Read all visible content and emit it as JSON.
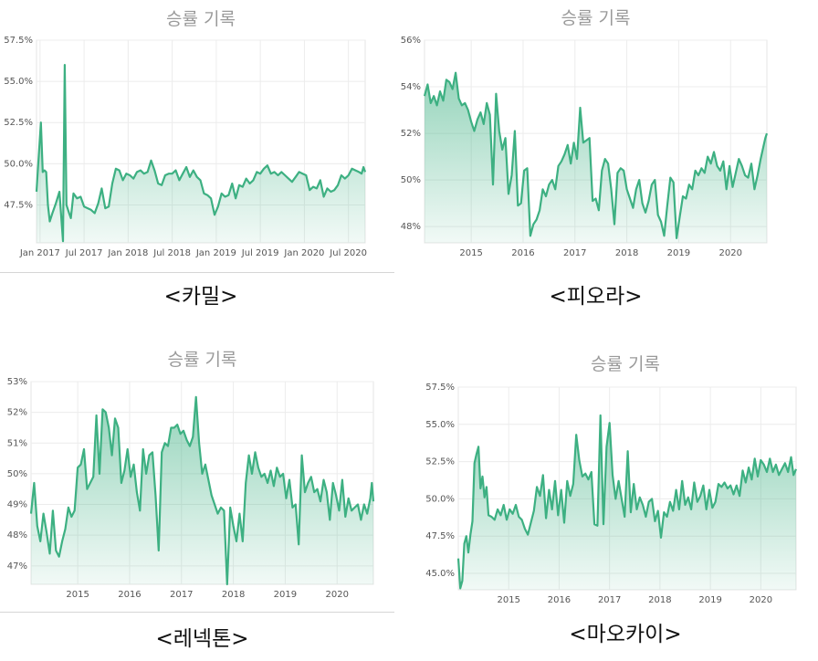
{
  "chart_data": [
    {
      "type": "area",
      "title": "승률 기록",
      "caption": "<카밀>",
      "x_tick_labels": [
        "Jan 2017",
        "Jul 2017",
        "Jan 2018",
        "Jul 2018",
        "Jan 2019",
        "Jul 2019",
        "Jan 2020",
        "Jul 2020"
      ],
      "x_tick_pos": [
        2017.0,
        2017.5,
        2018.0,
        2018.5,
        2019.0,
        2019.5,
        2020.0,
        2020.5
      ],
      "xlim": [
        2016.96,
        2020.69
      ],
      "y_tick_labels": [
        "47.5%",
        "50.0%",
        "52.5%",
        "55.0%",
        "57.5%"
      ],
      "y_tick_values": [
        47.5,
        50.0,
        52.5,
        55.0,
        57.5
      ],
      "ylim": [
        45.2,
        57.5
      ],
      "grid": true,
      "color": "#3db082",
      "x": [
        2016.96,
        2016.98,
        2017.01,
        2017.03,
        2017.05,
        2017.07,
        2017.09,
        2017.11,
        2017.14,
        2017.18,
        2017.22,
        2017.26,
        2017.28,
        2017.3,
        2017.33,
        2017.35,
        2017.38,
        2017.42,
        2017.46,
        2017.5,
        2017.54,
        2017.58,
        2017.62,
        2017.66,
        2017.7,
        2017.74,
        2017.78,
        2017.82,
        2017.86,
        2017.9,
        2017.94,
        2017.98,
        2018.02,
        2018.06,
        2018.1,
        2018.14,
        2018.18,
        2018.22,
        2018.26,
        2018.3,
        2018.34,
        2018.38,
        2018.42,
        2018.46,
        2018.5,
        2018.54,
        2018.58,
        2018.62,
        2018.66,
        2018.7,
        2018.74,
        2018.78,
        2018.82,
        2018.86,
        2018.9,
        2018.94,
        2018.98,
        2019.02,
        2019.06,
        2019.1,
        2019.14,
        2019.18,
        2019.22,
        2019.26,
        2019.3,
        2019.34,
        2019.38,
        2019.42,
        2019.46,
        2019.5,
        2019.54,
        2019.58,
        2019.62,
        2019.66,
        2019.7,
        2019.74,
        2019.78,
        2019.82,
        2019.86,
        2019.9,
        2019.94,
        2019.98,
        2020.02,
        2020.06,
        2020.1,
        2020.14,
        2020.18,
        2020.22,
        2020.26,
        2020.3,
        2020.34,
        2020.38,
        2020.42,
        2020.46,
        2020.5,
        2020.54,
        2020.58,
        2020.62,
        2020.65,
        2020.67,
        2020.69
      ],
      "y": [
        48.3,
        50.0,
        52.5,
        49.5,
        49.6,
        49.5,
        47.5,
        46.5,
        47.0,
        47.6,
        48.3,
        45.3,
        56.0,
        47.5,
        47.0,
        46.7,
        48.2,
        47.9,
        48.0,
        47.4,
        47.3,
        47.2,
        47.0,
        47.6,
        48.5,
        47.3,
        47.4,
        48.8,
        49.7,
        49.6,
        49.0,
        49.4,
        49.3,
        49.1,
        49.5,
        49.6,
        49.4,
        49.5,
        50.2,
        49.6,
        48.8,
        48.7,
        49.3,
        49.4,
        49.4,
        49.6,
        49.0,
        49.4,
        49.8,
        49.2,
        49.6,
        49.2,
        49.0,
        48.2,
        48.1,
        47.9,
        46.9,
        47.4,
        48.2,
        48.0,
        48.1,
        48.8,
        47.9,
        48.7,
        48.6,
        49.1,
        48.8,
        49.0,
        49.5,
        49.4,
        49.7,
        49.9,
        49.4,
        49.5,
        49.3,
        49.5,
        49.3,
        49.1,
        48.9,
        49.2,
        49.5,
        49.4,
        49.3,
        48.4,
        48.6,
        48.5,
        49.0,
        48.0,
        48.5,
        48.3,
        48.4,
        48.7,
        49.3,
        49.1,
        49.3,
        49.7,
        49.6,
        49.5,
        49.4,
        49.8,
        49.5
      ]
    },
    {
      "type": "area",
      "title": "승률 기록",
      "caption": "<피오라>",
      "x_tick_labels": [
        "2015",
        "2016",
        "2017",
        "2018",
        "2019",
        "2020"
      ],
      "x_tick_pos": [
        2015.0,
        2016.0,
        2017.0,
        2018.0,
        2019.0,
        2020.0
      ],
      "xlim": [
        2014.1,
        2020.7
      ],
      "y_tick_labels": [
        "48%",
        "50%",
        "52%",
        "54%",
        "56%"
      ],
      "y_tick_values": [
        48,
        50,
        52,
        54,
        56
      ],
      "ylim": [
        47.3,
        56.0
      ],
      "grid": true,
      "color": "#3db082",
      "x": [
        2014.1,
        2014.16,
        2014.22,
        2014.28,
        2014.34,
        2014.4,
        2014.46,
        2014.52,
        2014.58,
        2014.64,
        2014.7,
        2014.76,
        2014.82,
        2014.88,
        2014.94,
        2015.0,
        2015.06,
        2015.12,
        2015.18,
        2015.24,
        2015.3,
        2015.36,
        2015.42,
        2015.48,
        2015.54,
        2015.6,
        2015.66,
        2015.72,
        2015.78,
        2015.84,
        2015.9,
        2015.96,
        2016.02,
        2016.08,
        2016.14,
        2016.2,
        2016.26,
        2016.32,
        2016.38,
        2016.44,
        2016.5,
        2016.56,
        2016.62,
        2016.68,
        2016.74,
        2016.8,
        2016.86,
        2016.92,
        2016.98,
        2017.04,
        2017.1,
        2017.16,
        2017.22,
        2017.28,
        2017.34,
        2017.4,
        2017.46,
        2017.52,
        2017.58,
        2017.64,
        2017.7,
        2017.76,
        2017.82,
        2017.88,
        2017.94,
        2018.0,
        2018.06,
        2018.12,
        2018.18,
        2018.24,
        2018.3,
        2018.36,
        2018.42,
        2018.48,
        2018.54,
        2018.6,
        2018.66,
        2018.72,
        2018.78,
        2018.84,
        2018.9,
        2018.96,
        2019.02,
        2019.08,
        2019.14,
        2019.2,
        2019.26,
        2019.32,
        2019.38,
        2019.44,
        2019.5,
        2019.56,
        2019.62,
        2019.68,
        2019.74,
        2019.8,
        2019.86,
        2019.92,
        2019.98,
        2020.04,
        2020.1,
        2020.16,
        2020.22,
        2020.28,
        2020.34,
        2020.4,
        2020.46,
        2020.52,
        2020.58,
        2020.64,
        2020.67,
        2020.7
      ],
      "y": [
        53.6,
        54.1,
        53.3,
        53.6,
        53.2,
        53.8,
        53.4,
        54.3,
        54.2,
        53.9,
        54.6,
        53.5,
        53.2,
        53.3,
        53.0,
        52.5,
        52.1,
        52.6,
        52.9,
        52.4,
        53.3,
        52.8,
        49.8,
        53.7,
        52.1,
        51.3,
        51.8,
        49.4,
        50.2,
        52.1,
        48.9,
        49.0,
        50.4,
        50.5,
        47.6,
        48.1,
        48.3,
        48.7,
        49.6,
        49.3,
        49.8,
        50.0,
        49.6,
        50.6,
        50.8,
        51.1,
        51.5,
        50.7,
        51.6,
        50.9,
        53.1,
        51.6,
        51.7,
        51.8,
        49.1,
        49.2,
        48.7,
        50.4,
        50.9,
        50.7,
        49.6,
        48.1,
        50.3,
        50.5,
        50.4,
        49.6,
        49.2,
        48.8,
        49.6,
        50.0,
        49.0,
        48.6,
        49.1,
        49.8,
        50.0,
        48.5,
        48.2,
        47.6,
        48.9,
        50.1,
        49.9,
        47.5,
        48.4,
        49.3,
        49.2,
        49.8,
        49.6,
        50.4,
        50.2,
        50.5,
        50.3,
        51.0,
        50.7,
        51.2,
        50.6,
        50.4,
        50.8,
        49.6,
        50.6,
        49.7,
        50.3,
        50.9,
        50.6,
        50.2,
        50.1,
        50.7,
        49.6,
        50.2,
        50.9,
        51.5,
        51.8,
        52.0
      ]
    },
    {
      "type": "area",
      "title": "승률 기록",
      "caption": "<레넥톤>",
      "x_tick_labels": [
        "2015",
        "2016",
        "2017",
        "2018",
        "2019",
        "2020"
      ],
      "x_tick_pos": [
        2015.0,
        2016.0,
        2017.0,
        2018.0,
        2019.0,
        2020.0
      ],
      "xlim": [
        2014.1,
        2020.7
      ],
      "y_tick_labels": [
        "47%",
        "48%",
        "49%",
        "50%",
        "51%",
        "52%",
        "53%"
      ],
      "y_tick_values": [
        47,
        48,
        49,
        50,
        51,
        52,
        53
      ],
      "ylim": [
        46.4,
        53.0
      ],
      "grid": true,
      "color": "#3db082",
      "x": [
        2014.1,
        2014.16,
        2014.22,
        2014.28,
        2014.34,
        2014.4,
        2014.46,
        2014.52,
        2014.58,
        2014.64,
        2014.7,
        2014.76,
        2014.82,
        2014.88,
        2014.94,
        2015.0,
        2015.06,
        2015.12,
        2015.18,
        2015.24,
        2015.3,
        2015.36,
        2015.42,
        2015.48,
        2015.54,
        2015.6,
        2015.66,
        2015.72,
        2015.78,
        2015.84,
        2015.9,
        2015.96,
        2016.02,
        2016.08,
        2016.14,
        2016.2,
        2016.26,
        2016.32,
        2016.38,
        2016.44,
        2016.5,
        2016.56,
        2016.62,
        2016.68,
        2016.74,
        2016.8,
        2016.86,
        2016.92,
        2016.98,
        2017.04,
        2017.1,
        2017.16,
        2017.22,
        2017.28,
        2017.34,
        2017.4,
        2017.46,
        2017.52,
        2017.58,
        2017.64,
        2017.7,
        2017.76,
        2017.82,
        2017.88,
        2017.94,
        2018.0,
        2018.06,
        2018.12,
        2018.18,
        2018.24,
        2018.3,
        2018.36,
        2018.42,
        2018.48,
        2018.54,
        2018.6,
        2018.66,
        2018.72,
        2018.78,
        2018.84,
        2018.9,
        2018.96,
        2019.02,
        2019.08,
        2019.14,
        2019.2,
        2019.26,
        2019.32,
        2019.38,
        2019.44,
        2019.5,
        2019.56,
        2019.62,
        2019.68,
        2019.74,
        2019.8,
        2019.86,
        2019.92,
        2019.98,
        2020.04,
        2020.1,
        2020.16,
        2020.22,
        2020.28,
        2020.34,
        2020.4,
        2020.46,
        2020.52,
        2020.58,
        2020.64,
        2020.67,
        2020.7
      ],
      "y": [
        48.7,
        49.7,
        48.3,
        47.8,
        48.7,
        48.1,
        47.4,
        48.8,
        47.5,
        47.3,
        47.8,
        48.2,
        48.9,
        48.6,
        48.8,
        50.2,
        50.3,
        50.8,
        49.5,
        49.7,
        49.9,
        51.9,
        50.0,
        52.1,
        52.0,
        51.5,
        50.6,
        51.8,
        51.5,
        49.7,
        50.1,
        50.8,
        49.9,
        50.3,
        49.4,
        48.8,
        50.8,
        50.0,
        50.6,
        50.7,
        49.3,
        47.5,
        50.7,
        51.0,
        50.9,
        51.5,
        51.5,
        51.6,
        51.3,
        51.4,
        51.1,
        50.9,
        51.2,
        52.5,
        51.0,
        50.0,
        50.3,
        49.8,
        49.3,
        49.0,
        48.7,
        48.9,
        48.8,
        46.4,
        48.9,
        48.3,
        47.8,
        48.7,
        47.8,
        49.7,
        50.6,
        50.0,
        50.7,
        50.2,
        49.9,
        50.0,
        49.7,
        50.1,
        49.6,
        50.2,
        49.9,
        50.0,
        49.2,
        49.8,
        48.9,
        49.0,
        47.7,
        50.6,
        49.4,
        49.7,
        49.9,
        49.4,
        49.5,
        49.1,
        49.8,
        49.4,
        48.5,
        49.7,
        49.3,
        48.8,
        49.8,
        48.6,
        49.2,
        48.8,
        48.9,
        49.0,
        48.5,
        49.0,
        48.7,
        49.2,
        49.7,
        49.1
      ]
    },
    {
      "type": "area",
      "title": "승률 기록",
      "caption": "<마오카이>",
      "x_tick_labels": [
        "2015",
        "2016",
        "2017",
        "2018",
        "2019",
        "2020"
      ],
      "x_tick_pos": [
        2015.0,
        2016.0,
        2017.0,
        2018.0,
        2019.0,
        2020.0
      ],
      "xlim": [
        2014.0,
        2020.7
      ],
      "y_tick_labels": [
        "45.0%",
        "47.5%",
        "50.0%",
        "52.5%",
        "55.0%",
        "57.5%"
      ],
      "y_tick_values": [
        45.0,
        47.5,
        50.0,
        52.5,
        55.0,
        57.5
      ],
      "ylim": [
        43.9,
        57.5
      ],
      "grid": true,
      "color": "#3db082",
      "x": [
        2014.0,
        2014.04,
        2014.08,
        2014.12,
        2014.16,
        2014.2,
        2014.24,
        2014.28,
        2014.32,
        2014.36,
        2014.4,
        2014.44,
        2014.48,
        2014.52,
        2014.56,
        2014.6,
        2014.66,
        2014.72,
        2014.78,
        2014.84,
        2014.9,
        2014.96,
        2015.02,
        2015.08,
        2015.14,
        2015.2,
        2015.26,
        2015.32,
        2015.38,
        2015.44,
        2015.5,
        2015.56,
        2015.62,
        2015.68,
        2015.74,
        2015.8,
        2015.86,
        2015.92,
        2015.98,
        2016.04,
        2016.1,
        2016.16,
        2016.22,
        2016.28,
        2016.34,
        2016.4,
        2016.46,
        2016.52,
        2016.58,
        2016.64,
        2016.7,
        2016.76,
        2016.82,
        2016.88,
        2016.94,
        2017.0,
        2017.06,
        2017.12,
        2017.18,
        2017.24,
        2017.3,
        2017.36,
        2017.42,
        2017.48,
        2017.54,
        2017.6,
        2017.66,
        2017.72,
        2017.78,
        2017.84,
        2017.9,
        2017.96,
        2018.02,
        2018.08,
        2018.14,
        2018.2,
        2018.26,
        2018.32,
        2018.38,
        2018.44,
        2018.5,
        2018.56,
        2018.62,
        2018.68,
        2018.74,
        2018.8,
        2018.86,
        2018.92,
        2018.98,
        2019.04,
        2019.1,
        2019.16,
        2019.22,
        2019.28,
        2019.34,
        2019.4,
        2019.46,
        2019.52,
        2019.58,
        2019.64,
        2019.7,
        2019.76,
        2019.82,
        2019.88,
        2019.94,
        2020.0,
        2020.06,
        2020.12,
        2020.18,
        2020.24,
        2020.3,
        2020.36,
        2020.42,
        2020.48,
        2020.54,
        2020.6,
        2020.65,
        2020.7
      ],
      "y": [
        46.0,
        44.0,
        44.5,
        47.0,
        47.5,
        46.4,
        47.6,
        48.5,
        52.4,
        53.0,
        53.5,
        50.7,
        51.5,
        50.1,
        50.8,
        48.9,
        48.8,
        48.6,
        49.3,
        48.9,
        49.6,
        48.6,
        49.3,
        49.0,
        49.6,
        48.8,
        48.6,
        48.0,
        47.6,
        48.4,
        49.2,
        50.8,
        50.2,
        51.6,
        48.7,
        50.6,
        49.3,
        51.2,
        48.9,
        50.6,
        48.4,
        51.2,
        50.2,
        51.0,
        54.3,
        52.6,
        51.5,
        51.7,
        51.3,
        51.8,
        48.3,
        48.2,
        55.6,
        48.3,
        53.5,
        55.1,
        51.6,
        50.0,
        51.2,
        50.0,
        48.8,
        53.2,
        49.1,
        51.0,
        49.3,
        50.1,
        49.6,
        48.8,
        49.8,
        50.0,
        48.5,
        49.2,
        47.4,
        49.1,
        48.8,
        49.8,
        49.2,
        50.6,
        49.3,
        51.2,
        49.6,
        50.1,
        49.3,
        51.1,
        49.8,
        50.2,
        50.9,
        49.3,
        50.6,
        49.4,
        49.8,
        51.0,
        50.8,
        51.1,
        50.7,
        50.9,
        50.3,
        50.9,
        50.2,
        51.9,
        51.1,
        52.1,
        51.3,
        52.7,
        51.5,
        52.6,
        52.3,
        51.8,
        52.7,
        51.8,
        52.3,
        51.6,
        52.0,
        52.4,
        51.8,
        52.8,
        51.6,
        52.0
      ]
    }
  ]
}
